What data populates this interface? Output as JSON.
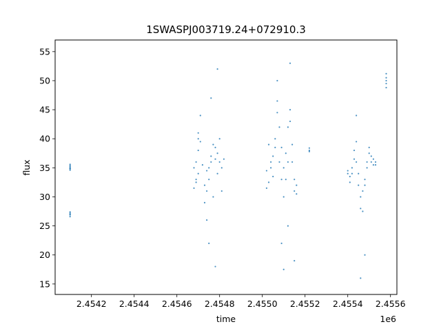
{
  "chart_data": {
    "type": "scatter",
    "title": "1SWASPJ003719.24+072910.3",
    "xlabel": "time",
    "ylabel": "flux",
    "x_offset_label": "1e6",
    "xlim": [
      2.45403,
      2.45563
    ],
    "ylim": [
      13.2,
      57.0
    ],
    "x_ticks": [
      2.4542,
      2.4544,
      2.4546,
      2.4548,
      2.455,
      2.4552,
      2.4554,
      2.4556
    ],
    "x_tick_labels": [
      "2.4542",
      "2.4544",
      "2.4546",
      "2.4548",
      "2.4550",
      "2.4552",
      "2.4554",
      "2.4556"
    ],
    "y_ticks": [
      15,
      20,
      25,
      30,
      35,
      40,
      45,
      50,
      55
    ],
    "y_tick_labels": [
      "15",
      "20",
      "25",
      "30",
      "35",
      "40",
      "45",
      "50",
      "55"
    ],
    "grid": false,
    "point_color": "#1f77b4",
    "series": [
      {
        "x": [
          2.4541,
          2.4541,
          2.4541,
          2.4541,
          2.4541,
          2.4541,
          2.4541,
          2.4541,
          2.4541,
          2.4541,
          2.4541,
          2.4541,
          2.45468,
          2.45468,
          2.45469,
          2.45469,
          2.45469,
          2.4547,
          2.4547,
          2.4547,
          2.4547,
          2.45471,
          2.45471,
          2.45472,
          2.45473,
          2.45473,
          2.45474,
          2.45474,
          2.45475,
          2.45475,
          2.45476,
          2.45476,
          2.45477,
          2.45477,
          2.45478,
          2.45478,
          2.45479,
          2.45479,
          2.4548,
          2.4548,
          2.45481,
          2.45481,
          2.45482,
          2.45474,
          2.45476,
          2.45478,
          2.45475,
          2.45479,
          2.45502,
          2.45502,
          2.45503,
          2.45503,
          2.45504,
          2.45504,
          2.45505,
          2.45505,
          2.45506,
          2.45506,
          2.45507,
          2.45507,
          2.45508,
          2.45508,
          2.45509,
          2.45509,
          2.4551,
          2.4551,
          2.45511,
          2.45511,
          2.45512,
          2.45512,
          2.45513,
          2.45513,
          2.45514,
          2.45514,
          2.45515,
          2.45515,
          2.45516,
          2.45516,
          2.45507,
          2.4551,
          2.45513,
          2.45509,
          2.45512,
          2.45515,
          2.45522,
          2.45522,
          2.45522,
          2.4554,
          2.4554,
          2.45541,
          2.45541,
          2.45542,
          2.45542,
          2.45543,
          2.45543,
          2.45544,
          2.45544,
          2.45545,
          2.45545,
          2.45546,
          2.45546,
          2.45547,
          2.45547,
          2.45548,
          2.45548,
          2.45549,
          2.45549,
          2.4555,
          2.4555,
          2.45551,
          2.45551,
          2.45552,
          2.45552,
          2.45553,
          2.45553,
          2.45544,
          2.45548,
          2.45546,
          2.45558,
          2.45558,
          2.45558,
          2.45558,
          2.45558
        ],
        "y": [
          35.6,
          35.2,
          34.9,
          34.6,
          35.0,
          35.4,
          34.8,
          26.6,
          27.0,
          27.4,
          26.9,
          27.2,
          31.5,
          35.0,
          33.0,
          36.0,
          32.5,
          34.0,
          38.0,
          41.0,
          40.0,
          39.5,
          44.0,
          35.5,
          32.0,
          29.0,
          31.0,
          34.5,
          35.0,
          33.0,
          37.0,
          36.0,
          30.0,
          39.0,
          36.5,
          38.5,
          34.0,
          37.5,
          40.0,
          36.0,
          35.0,
          31.0,
          36.5,
          26.0,
          47.0,
          18.0,
          22.0,
          52.0,
          31.5,
          34.5,
          32.5,
          39.0,
          36.0,
          35.0,
          33.5,
          37.0,
          38.5,
          40.0,
          44.5,
          46.5,
          42.0,
          36.0,
          33.0,
          38.5,
          35.0,
          30.0,
          37.5,
          33.0,
          36.0,
          42.0,
          45.0,
          43.0,
          39.0,
          36.0,
          33.0,
          31.0,
          32.0,
          30.5,
          50.0,
          17.5,
          53.0,
          22.0,
          25.0,
          19.0,
          38.0,
          38.4,
          37.8,
          34.5,
          34.0,
          32.5,
          33.5,
          35.0,
          34.0,
          36.5,
          38.0,
          39.5,
          36.0,
          32.0,
          34.0,
          30.0,
          28.0,
          27.5,
          31.0,
          33.0,
          32.0,
          35.0,
          36.0,
          37.5,
          38.5,
          36.0,
          37.0,
          35.5,
          36.5,
          36.0,
          35.5,
          44.0,
          20.0,
          16.0,
          49.5,
          50.5,
          51.2,
          48.8,
          50.0
        ]
      }
    ]
  }
}
